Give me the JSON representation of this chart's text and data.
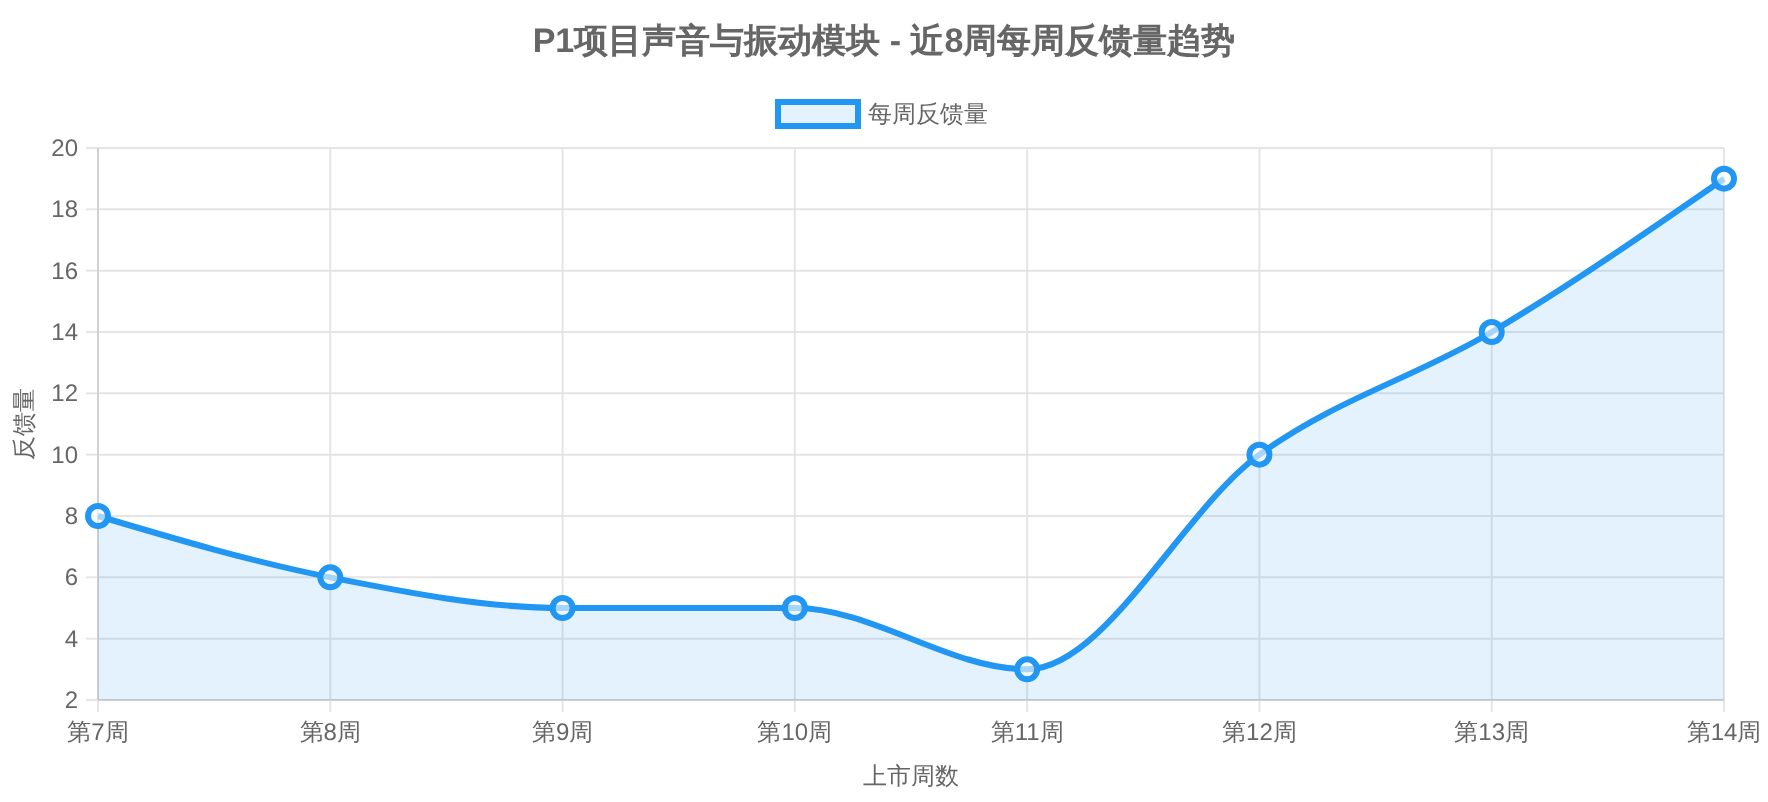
{
  "chart_data": {
    "type": "area",
    "title": "P1项目声音与振动模块 - 近8周每周反馈量趋势",
    "xlabel": "上市周数",
    "ylabel": "反馈量",
    "categories": [
      "第7周",
      "第8周",
      "第9周",
      "第10周",
      "第11周",
      "第12周",
      "第13周",
      "第14周"
    ],
    "series": [
      {
        "name": "每周反馈量",
        "color": "#2196f3",
        "values": [
          8,
          6,
          5,
          5,
          3,
          10,
          14,
          19
        ]
      }
    ],
    "ylim": [
      2,
      20
    ],
    "yticks": [
      2,
      4,
      6,
      8,
      10,
      12,
      14,
      16,
      18,
      20
    ],
    "grid": true,
    "legend": "top",
    "marker": "circle",
    "line_style": "solid"
  }
}
